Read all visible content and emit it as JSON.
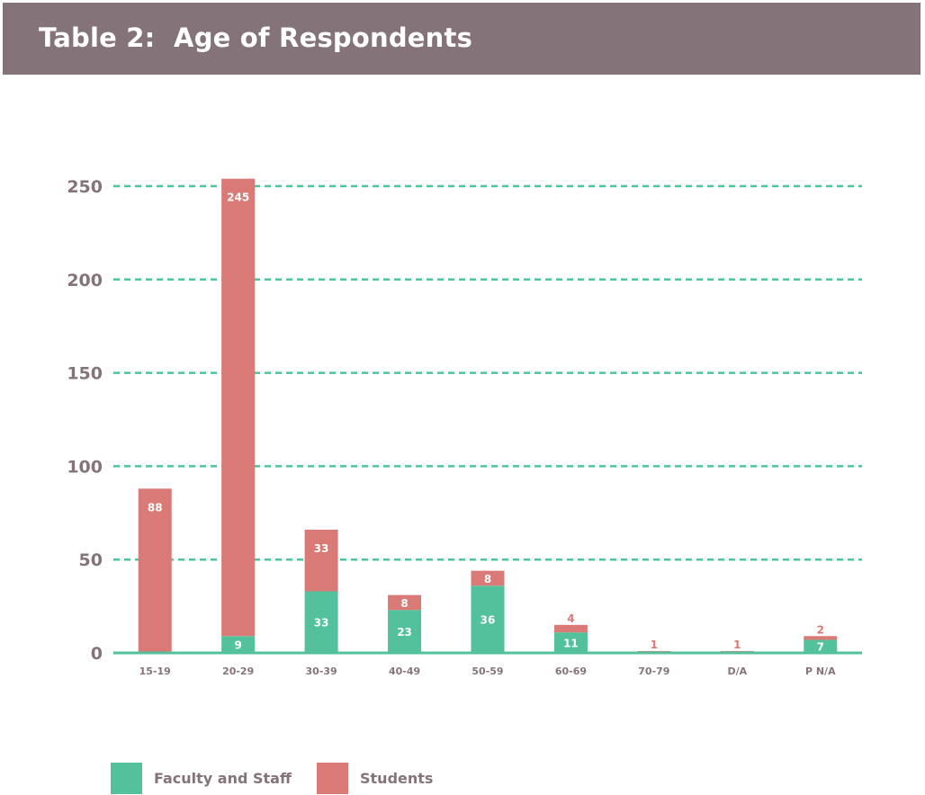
{
  "header": {
    "title": "Table 2:  Age of Respondents"
  },
  "colors": {
    "header_bg": "#847479",
    "faculty": "#52c19c",
    "students": "#d97a77",
    "grid": "#52c19c",
    "text": "#847479"
  },
  "legend": [
    {
      "label": "Faculty and Staff",
      "color": "#52c19c"
    },
    {
      "label": "Students",
      "color": "#d97a77"
    }
  ],
  "chart_data": {
    "type": "bar",
    "stacked": true,
    "categories": [
      "15-19",
      "20-29",
      "30-39",
      "40-49",
      "50-59",
      "60-69",
      "70-79",
      "D/A",
      "P N/A"
    ],
    "series": [
      {
        "name": "Faculty and Staff",
        "values": [
          0,
          9,
          33,
          23,
          36,
          11,
          0,
          0,
          7
        ]
      },
      {
        "name": "Students",
        "values": [
          88,
          245,
          33,
          8,
          8,
          4,
          1,
          1,
          2
        ]
      }
    ],
    "data_labels": {
      "Faculty and Staff": [
        "",
        "9",
        "33",
        "23",
        "36",
        "11",
        "",
        "",
        "7"
      ],
      "Students": [
        "88",
        "245",
        "33",
        "8",
        "8",
        "4",
        "1",
        "1",
        "2"
      ]
    },
    "yticks": [
      0,
      50,
      100,
      150,
      200,
      250
    ],
    "ylim": [
      0,
      250
    ],
    "grid": true,
    "legend_position": "bottom-left"
  }
}
